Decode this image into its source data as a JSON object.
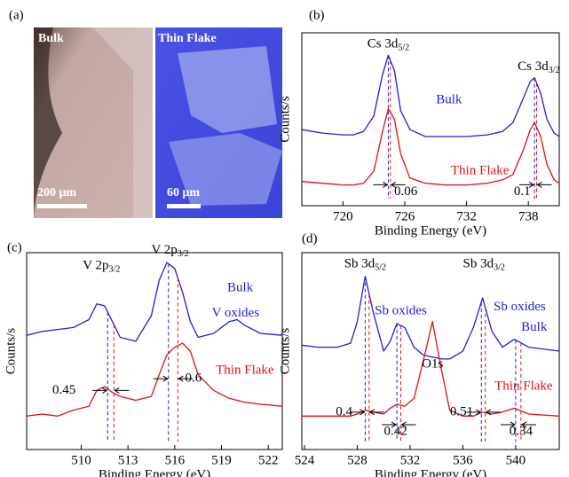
{
  "micrographs": {
    "label": "(a)",
    "images": [
      {
        "title": "Bulk",
        "scale": "200 μm"
      },
      {
        "title": "Thin Flake",
        "scale": "60 μm"
      }
    ]
  },
  "chart_data": [
    {
      "label": "(b)",
      "type": "line",
      "xlabel": "Binding Energy (eV)",
      "ylabel": "Counts/s",
      "xlim": [
        716,
        741
      ],
      "xticks": [
        720,
        726,
        732,
        738
      ],
      "ylim": [
        0,
        100
      ],
      "x": [
        716,
        718,
        720,
        721,
        722,
        723,
        723.8,
        724.4,
        725,
        725.6,
        726.5,
        728,
        730,
        732,
        734,
        735.5,
        736.5,
        737.5,
        738.2,
        738.6,
        739.2,
        739.8,
        740.5,
        741
      ],
      "series": [
        {
          "name": "Bulk",
          "color": "#1f1fd8",
          "label_x": 730.3,
          "label_y": 61,
          "values": [
            44,
            42,
            41,
            41,
            43,
            52,
            75,
            87,
            78,
            55,
            44,
            40,
            40,
            40,
            41,
            43,
            48,
            62,
            72,
            74,
            65,
            50,
            42,
            40
          ]
        },
        {
          "name": "Thin Flake",
          "color": "#e01010",
          "label_x": 733.3,
          "label_y": 20,
          "values": [
            14,
            13,
            12,
            12,
            13,
            20,
            42,
            56,
            50,
            30,
            16,
            13,
            12,
            12,
            13,
            15,
            18,
            32,
            44,
            48,
            40,
            24,
            15,
            13
          ]
        }
      ],
      "annotations": [
        {
          "text": "Cs 3d",
          "sub": "5/2",
          "x": 724.4,
          "y": 93,
          "color": "#000000"
        },
        {
          "text": "Cs 3d",
          "sub": "3/2",
          "x": 739,
          "y": 80,
          "color": "#000000"
        }
      ],
      "peak_lines": [
        {
          "x": 724.4,
          "color": "#1f1fd8"
        },
        {
          "x": 724.6,
          "color": "#e01010"
        },
        {
          "x": 738.6,
          "color": "#1f1fd8"
        },
        {
          "x": 738.8,
          "color": "#e01010"
        }
      ],
      "shifts": [
        {
          "text": "0.06",
          "x": 726.1,
          "y": 8
        },
        {
          "text": "0.1",
          "x": 737.4,
          "y": 8
        }
      ]
    },
    {
      "label": "(c)",
      "type": "line",
      "xlabel": "Binding Energy (eV)",
      "ylabel": "Counts/s",
      "xlim": [
        506.5,
        522.9
      ],
      "xticks": [
        510,
        513,
        516,
        519,
        522
      ],
      "ylim": [
        0,
        100
      ],
      "x": [
        506.5,
        507.5,
        508.5,
        509.5,
        510.5,
        511,
        511.5,
        512,
        512.5,
        513.5,
        514.5,
        515,
        515.5,
        516,
        516.5,
        517,
        517.5,
        518.5,
        519.5,
        520,
        520.5,
        521.5,
        522.9
      ],
      "series": [
        {
          "name": "Bulk",
          "color": "#1f1fd8",
          "label_x": 520.2,
          "label_y": 82,
          "values": [
            58,
            60,
            61,
            62,
            66,
            74,
            73,
            65,
            57,
            55,
            68,
            86,
            95,
            92,
            80,
            65,
            57,
            59,
            65,
            66,
            63,
            59,
            58
          ]
        },
        {
          "name": "Thin Flake",
          "color": "#e01010",
          "label_x": 520.5,
          "label_y": 40,
          "values": [
            17,
            18,
            17,
            20,
            22,
            30,
            32,
            29,
            27,
            25,
            27,
            38,
            48,
            52,
            54,
            50,
            38,
            30,
            26,
            25,
            24,
            23,
            22
          ]
        }
      ],
      "annotations": [
        {
          "text": "V 2p",
          "sub": "3/2",
          "x": 511.3,
          "y": 93,
          "color": "#000000"
        },
        {
          "text": "V 2p",
          "sub": "3/2",
          "x": 515.7,
          "y": 101,
          "color": "#000000"
        },
        {
          "text": "V oxides",
          "x": 519.9,
          "y": 69,
          "color": "#1f1fd8"
        }
      ],
      "peak_lines": [
        {
          "x": 511.7,
          "color": "#1f1fd8"
        },
        {
          "x": 512.1,
          "color": "#e01010"
        },
        {
          "x": 515.6,
          "color": "#1f1fd8"
        },
        {
          "x": 516.2,
          "color": "#e01010"
        }
      ],
      "shifts": [
        {
          "text": "0.45",
          "x": 508.9,
          "y": 30
        },
        {
          "text": "0.6",
          "x": 517.2,
          "y": 36
        }
      ]
    },
    {
      "label": "(d)",
      "type": "line",
      "xlabel": "Binding Energy (eV)",
      "ylabel": "Counts/s",
      "xlim": [
        523.8,
        543.3
      ],
      "xticks": [
        524,
        528,
        532,
        536,
        540
      ],
      "ylim": [
        0,
        100
      ],
      "x": [
        523.8,
        525,
        526.5,
        527.5,
        528,
        528.6,
        529.2,
        530,
        530.5,
        531,
        531.6,
        532.3,
        533,
        533.7,
        534.4,
        535,
        536,
        536.8,
        537.5,
        538.2,
        539,
        539.9,
        541,
        543.3
      ],
      "series": [
        {
          "name": "Bulk",
          "color": "#1f1fd8",
          "label_x": 541.4,
          "label_y": 62,
          "values": [
            53,
            52,
            52,
            54,
            65,
            88,
            70,
            50,
            55,
            64,
            62,
            52,
            48,
            47,
            46,
            46,
            50,
            62,
            77,
            60,
            52,
            56,
            52,
            50
          ]
        },
        {
          "name": "Thin Flake",
          "color": "#e01010",
          "label_x": 540.6,
          "label_y": 32,
          "values": [
            17,
            17,
            17,
            17,
            18,
            20,
            19,
            18,
            21,
            23,
            22,
            26,
            45,
            65,
            40,
            20,
            17,
            17,
            19,
            18,
            19,
            21,
            18,
            17
          ]
        }
      ],
      "annotations": [
        {
          "text": "Sb 3d",
          "sub": "5/2",
          "x": 528.6,
          "y": 94,
          "color": "#000000"
        },
        {
          "text": "Sb oxides",
          "x": 531.3,
          "y": 70,
          "color": "#1f1fd8"
        },
        {
          "text": "Sb 3d",
          "sub": "3/2",
          "x": 537.6,
          "y": 94,
          "color": "#000000"
        },
        {
          "text": "Sb oxides",
          "x": 540.3,
          "y": 72,
          "color": "#1f1fd8"
        },
        {
          "text": "O1s",
          "x": 533.7,
          "y": 43,
          "color": "#000000"
        }
      ],
      "peak_lines": [
        {
          "x": 528.6,
          "color": "#1f1fd8"
        },
        {
          "x": 528.9,
          "color": "#e01010"
        },
        {
          "x": 531.0,
          "color": "#1f1fd8"
        },
        {
          "x": 531.3,
          "color": "#e01010"
        },
        {
          "x": 537.4,
          "color": "#1f1fd8"
        },
        {
          "x": 537.7,
          "color": "#e01010"
        },
        {
          "x": 540.0,
          "color": "#1f1fd8"
        },
        {
          "x": 540.4,
          "color": "#e01010"
        }
      ],
      "shifts": [
        {
          "text": "0.4",
          "x": 527.0,
          "y": 19
        },
        {
          "text": "0.42",
          "x": 530.9,
          "y": 9
        },
        {
          "text": "0.51",
          "x": 535.9,
          "y": 19
        },
        {
          "text": "0.34",
          "x": 540.4,
          "y": 9
        }
      ]
    }
  ]
}
